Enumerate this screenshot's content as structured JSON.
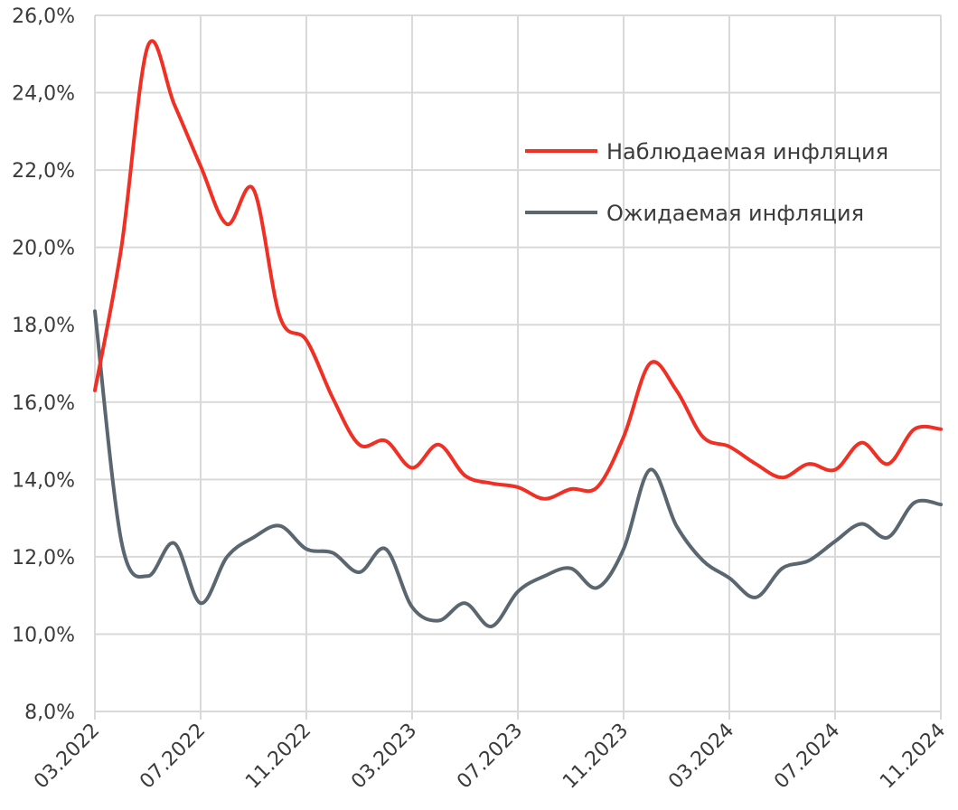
{
  "chart_data": {
    "type": "line",
    "title": "",
    "xlabel": "",
    "ylabel": "",
    "ylim": [
      8,
      26
    ],
    "yticks": [
      "8,0%",
      "10,0%",
      "12,0%",
      "14,0%",
      "16,0%",
      "18,0%",
      "20,0%",
      "22,0%",
      "24,0%",
      "26,0%"
    ],
    "xticks": [
      "03.2022",
      "07.2022",
      "11.2022",
      "03.2023",
      "07.2023",
      "11.2023",
      "03.2024",
      "07.2024",
      "11.2024"
    ],
    "grid": true,
    "legend_position": "top-right",
    "x": [
      "03.2022",
      "04.2022",
      "05.2022",
      "06.2022",
      "07.2022",
      "08.2022",
      "09.2022",
      "10.2022",
      "11.2022",
      "12.2022",
      "01.2023",
      "02.2023",
      "03.2023",
      "04.2023",
      "05.2023",
      "06.2023",
      "07.2023",
      "08.2023",
      "09.2023",
      "10.2023",
      "11.2023",
      "12.2023",
      "01.2024",
      "02.2024",
      "03.2024",
      "04.2024",
      "05.2024",
      "06.2024",
      "07.2024",
      "08.2024",
      "09.2024",
      "10.2024",
      "11.2024"
    ],
    "series": [
      {
        "name": "Наблюдаемая инфляция",
        "color": "#f03024",
        "values": [
          16.3,
          20.0,
          25.2,
          23.7,
          22.1,
          20.6,
          21.5,
          18.2,
          17.6,
          16.1,
          14.9,
          15.0,
          14.3,
          14.9,
          14.1,
          13.9,
          13.8,
          13.5,
          13.75,
          13.8,
          15.1,
          17.0,
          16.3,
          15.1,
          14.85,
          14.4,
          14.05,
          14.4,
          14.25,
          14.95,
          14.4,
          15.3,
          15.3
        ]
      },
      {
        "name": "Ожидаемая инфляция",
        "color": "#5a6670",
        "values": [
          18.35,
          12.4,
          11.5,
          12.35,
          10.8,
          12.0,
          12.5,
          12.8,
          12.2,
          12.1,
          11.6,
          12.2,
          10.7,
          10.35,
          10.8,
          10.2,
          11.1,
          11.5,
          11.7,
          11.2,
          12.2,
          14.25,
          12.8,
          11.9,
          11.45,
          10.95,
          11.7,
          11.9,
          12.4,
          12.85,
          12.5,
          13.4,
          13.35
        ]
      }
    ]
  }
}
